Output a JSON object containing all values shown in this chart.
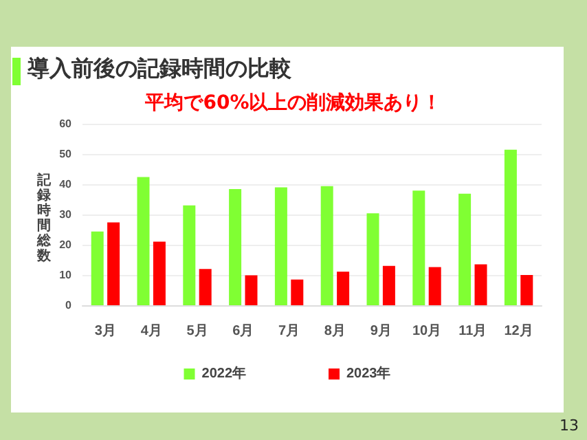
{
  "chart_data": {
    "type": "bar",
    "title": "導入前後の記録時間の比較",
    "subtitle": "平均で60%以上の削減効果あり！",
    "ylabel": "記録時間総数",
    "categories": [
      "3月",
      "4月",
      "5月",
      "6月",
      "7月",
      "8月",
      "9月",
      "10月",
      "11月",
      "12月"
    ],
    "series": [
      {
        "name": "2022年",
        "color": "#80ff33",
        "values": [
          24.4,
          42.4,
          33,
          38.4,
          39,
          39.4,
          30.4,
          37.9,
          36.9,
          51.4
        ]
      },
      {
        "name": "2023年",
        "color": "#ff0000",
        "values": [
          27.4,
          21,
          12,
          9.9,
          8.5,
          11.1,
          13,
          12.6,
          13.5,
          10
        ]
      }
    ],
    "ylim": [
      0,
      60
    ],
    "yticks": [
      0,
      10,
      20,
      30,
      40,
      50,
      60
    ],
    "grid": "y",
    "legend": "bottom",
    "annotations": [
      "13"
    ]
  }
}
